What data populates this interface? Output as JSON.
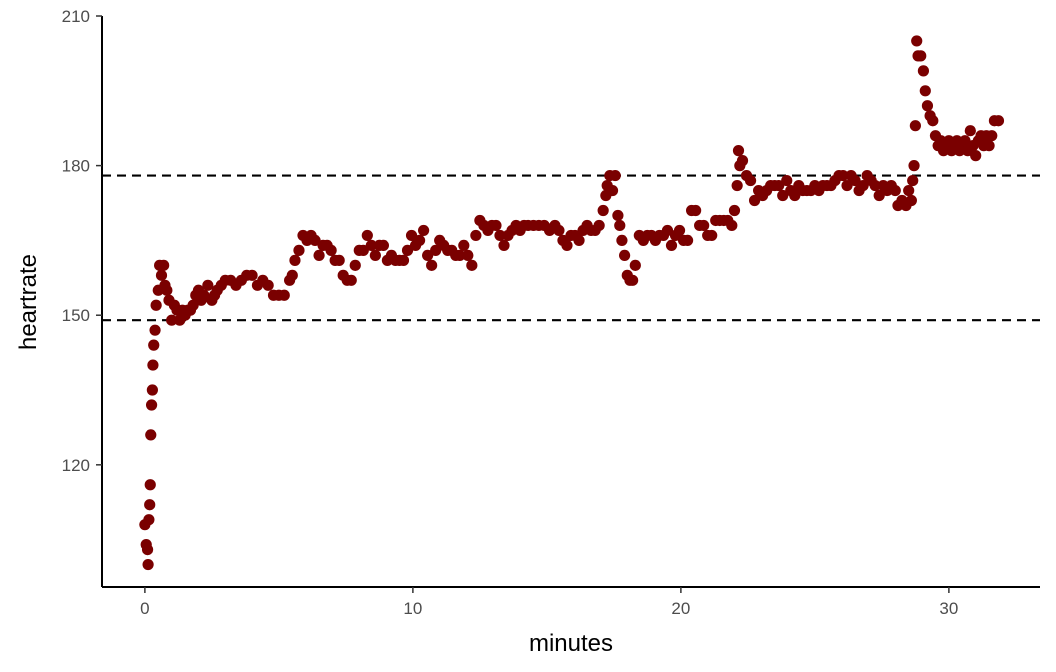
{
  "chart_data": {
    "type": "scatter",
    "title": "",
    "xlabel": "minutes",
    "ylabel": "heartrate",
    "xlim": [
      -1.6,
      33.4
    ],
    "ylim": [
      95.5,
      210
    ],
    "x_ticks": [
      0,
      10,
      20,
      30
    ],
    "y_ticks": [
      120,
      150,
      180,
      210
    ],
    "x_tick_labels": [
      "0",
      "10",
      "20",
      "30"
    ],
    "y_tick_labels": [
      "120",
      "150",
      "180",
      "210"
    ],
    "grid": false,
    "legend": "none",
    "point_color": "#7a0000",
    "reference_lines": [
      {
        "axis": "y",
        "value": 178,
        "style": "dashed",
        "color": "#000000"
      },
      {
        "axis": "y",
        "value": 149,
        "style": "dashed",
        "color": "#000000"
      }
    ],
    "points": [
      [
        0.0,
        108
      ],
      [
        0.05,
        104
      ],
      [
        0.1,
        103
      ],
      [
        0.12,
        100
      ],
      [
        0.15,
        109
      ],
      [
        0.18,
        112
      ],
      [
        0.2,
        116
      ],
      [
        0.22,
        126
      ],
      [
        0.25,
        132
      ],
      [
        0.28,
        135
      ],
      [
        0.3,
        140
      ],
      [
        0.33,
        144
      ],
      [
        0.38,
        147
      ],
      [
        0.42,
        152
      ],
      [
        0.5,
        155
      ],
      [
        0.55,
        160
      ],
      [
        0.62,
        158
      ],
      [
        0.7,
        160
      ],
      [
        0.75,
        156
      ],
      [
        0.82,
        155
      ],
      [
        0.9,
        153
      ],
      [
        1.0,
        149
      ],
      [
        1.1,
        152
      ],
      [
        1.2,
        151
      ],
      [
        1.3,
        149
      ],
      [
        1.4,
        151
      ],
      [
        1.5,
        150
      ],
      [
        1.6,
        151
      ],
      [
        1.7,
        151
      ],
      [
        1.8,
        152
      ],
      [
        1.9,
        154
      ],
      [
        2.0,
        155
      ],
      [
        2.1,
        153
      ],
      [
        2.2,
        154
      ],
      [
        2.35,
        156
      ],
      [
        2.5,
        153
      ],
      [
        2.6,
        154
      ],
      [
        2.7,
        155
      ],
      [
        2.85,
        156
      ],
      [
        3.0,
        157
      ],
      [
        3.2,
        157
      ],
      [
        3.4,
        156
      ],
      [
        3.6,
        157
      ],
      [
        3.8,
        158
      ],
      [
        4.0,
        158
      ],
      [
        4.2,
        156
      ],
      [
        4.4,
        157
      ],
      [
        4.6,
        156
      ],
      [
        4.8,
        154
      ],
      [
        5.0,
        154
      ],
      [
        5.2,
        154
      ],
      [
        5.4,
        157
      ],
      [
        5.5,
        158
      ],
      [
        5.6,
        161
      ],
      [
        5.75,
        163
      ],
      [
        5.9,
        166
      ],
      [
        6.05,
        165
      ],
      [
        6.2,
        166
      ],
      [
        6.35,
        165
      ],
      [
        6.5,
        162
      ],
      [
        6.65,
        164
      ],
      [
        6.8,
        164
      ],
      [
        6.95,
        163
      ],
      [
        7.1,
        161
      ],
      [
        7.25,
        161
      ],
      [
        7.4,
        158
      ],
      [
        7.55,
        157
      ],
      [
        7.7,
        157
      ],
      [
        7.85,
        160
      ],
      [
        8.0,
        163
      ],
      [
        8.15,
        163
      ],
      [
        8.3,
        166
      ],
      [
        8.45,
        164
      ],
      [
        8.6,
        162
      ],
      [
        8.75,
        164
      ],
      [
        8.9,
        164
      ],
      [
        9.05,
        161
      ],
      [
        9.2,
        162
      ],
      [
        9.35,
        161
      ],
      [
        9.5,
        161
      ],
      [
        9.65,
        161
      ],
      [
        9.8,
        163
      ],
      [
        9.95,
        166
      ],
      [
        10.1,
        164
      ],
      [
        10.25,
        165
      ],
      [
        10.4,
        167
      ],
      [
        10.55,
        162
      ],
      [
        10.7,
        160
      ],
      [
        10.85,
        163
      ],
      [
        11.0,
        165
      ],
      [
        11.15,
        164
      ],
      [
        11.3,
        163
      ],
      [
        11.45,
        163
      ],
      [
        11.6,
        162
      ],
      [
        11.75,
        162
      ],
      [
        11.9,
        164
      ],
      [
        12.05,
        162
      ],
      [
        12.2,
        160
      ],
      [
        12.35,
        166
      ],
      [
        12.5,
        169
      ],
      [
        12.65,
        168
      ],
      [
        12.8,
        167
      ],
      [
        12.95,
        168
      ],
      [
        13.1,
        168
      ],
      [
        13.25,
        166
      ],
      [
        13.4,
        164
      ],
      [
        13.55,
        166
      ],
      [
        13.7,
        167
      ],
      [
        13.85,
        168
      ],
      [
        14.0,
        167
      ],
      [
        14.15,
        168
      ],
      [
        14.3,
        168
      ],
      [
        14.5,
        168
      ],
      [
        14.7,
        168
      ],
      [
        14.9,
        168
      ],
      [
        15.1,
        167
      ],
      [
        15.3,
        168
      ],
      [
        15.45,
        167
      ],
      [
        15.6,
        165
      ],
      [
        15.75,
        164
      ],
      [
        15.9,
        166
      ],
      [
        16.05,
        166
      ],
      [
        16.2,
        165
      ],
      [
        16.35,
        167
      ],
      [
        16.5,
        168
      ],
      [
        16.65,
        167
      ],
      [
        16.8,
        167
      ],
      [
        16.95,
        168
      ],
      [
        17.1,
        171
      ],
      [
        17.2,
        174
      ],
      [
        17.25,
        176
      ],
      [
        17.35,
        178
      ],
      [
        17.45,
        175
      ],
      [
        17.55,
        178
      ],
      [
        17.65,
        170
      ],
      [
        17.72,
        168
      ],
      [
        17.8,
        165
      ],
      [
        17.9,
        162
      ],
      [
        18.0,
        158
      ],
      [
        18.1,
        157
      ],
      [
        18.2,
        157
      ],
      [
        18.3,
        160
      ],
      [
        18.45,
        166
      ],
      [
        18.6,
        165
      ],
      [
        18.75,
        166
      ],
      [
        18.9,
        166
      ],
      [
        19.05,
        165
      ],
      [
        19.2,
        166
      ],
      [
        19.35,
        166
      ],
      [
        19.5,
        167
      ],
      [
        19.65,
        164
      ],
      [
        19.8,
        166
      ],
      [
        19.95,
        167
      ],
      [
        20.1,
        165
      ],
      [
        20.25,
        165
      ],
      [
        20.4,
        171
      ],
      [
        20.55,
        171
      ],
      [
        20.7,
        168
      ],
      [
        20.85,
        168
      ],
      [
        21.0,
        166
      ],
      [
        21.15,
        166
      ],
      [
        21.3,
        169
      ],
      [
        21.45,
        169
      ],
      [
        21.6,
        169
      ],
      [
        21.75,
        169
      ],
      [
        21.9,
        168
      ],
      [
        22.0,
        171
      ],
      [
        22.1,
        176
      ],
      [
        22.15,
        183
      ],
      [
        22.2,
        180
      ],
      [
        22.3,
        181
      ],
      [
        22.45,
        178
      ],
      [
        22.6,
        177
      ],
      [
        22.75,
        173
      ],
      [
        22.9,
        175
      ],
      [
        23.05,
        174
      ],
      [
        23.2,
        175
      ],
      [
        23.35,
        176
      ],
      [
        23.5,
        176
      ],
      [
        23.65,
        176
      ],
      [
        23.8,
        174
      ],
      [
        23.95,
        177
      ],
      [
        24.1,
        175
      ],
      [
        24.25,
        174
      ],
      [
        24.4,
        176
      ],
      [
        24.55,
        175
      ],
      [
        24.7,
        175
      ],
      [
        24.85,
        175
      ],
      [
        25.0,
        176
      ],
      [
        25.15,
        175
      ],
      [
        25.3,
        176
      ],
      [
        25.45,
        176
      ],
      [
        25.6,
        176
      ],
      [
        25.75,
        177
      ],
      [
        25.9,
        178
      ],
      [
        26.05,
        178
      ],
      [
        26.2,
        176
      ],
      [
        26.35,
        178
      ],
      [
        26.5,
        177
      ],
      [
        26.65,
        175
      ],
      [
        26.8,
        176
      ],
      [
        26.95,
        178
      ],
      [
        27.1,
        177
      ],
      [
        27.25,
        176
      ],
      [
        27.4,
        174
      ],
      [
        27.55,
        176
      ],
      [
        27.7,
        175
      ],
      [
        27.85,
        176
      ],
      [
        28.0,
        175
      ],
      [
        28.1,
        172
      ],
      [
        28.25,
        173
      ],
      [
        28.4,
        172
      ],
      [
        28.5,
        175
      ],
      [
        28.6,
        173
      ],
      [
        28.65,
        177
      ],
      [
        28.7,
        180
      ],
      [
        28.75,
        188
      ],
      [
        28.8,
        205
      ],
      [
        28.85,
        202
      ],
      [
        28.95,
        202
      ],
      [
        29.05,
        199
      ],
      [
        29.12,
        195
      ],
      [
        29.2,
        192
      ],
      [
        29.3,
        190
      ],
      [
        29.4,
        189
      ],
      [
        29.5,
        186
      ],
      [
        29.6,
        184
      ],
      [
        29.7,
        185
      ],
      [
        29.8,
        183
      ],
      [
        29.9,
        184
      ],
      [
        30.0,
        185
      ],
      [
        30.1,
        183
      ],
      [
        30.2,
        184
      ],
      [
        30.3,
        185
      ],
      [
        30.4,
        183
      ],
      [
        30.5,
        184
      ],
      [
        30.6,
        185
      ],
      [
        30.7,
        183
      ],
      [
        30.8,
        187
      ],
      [
        30.9,
        184
      ],
      [
        31.0,
        182
      ],
      [
        31.1,
        185
      ],
      [
        31.2,
        186
      ],
      [
        31.3,
        184
      ],
      [
        31.4,
        186
      ],
      [
        31.5,
        184
      ],
      [
        31.6,
        186
      ],
      [
        31.7,
        189
      ],
      [
        31.85,
        189
      ]
    ]
  }
}
